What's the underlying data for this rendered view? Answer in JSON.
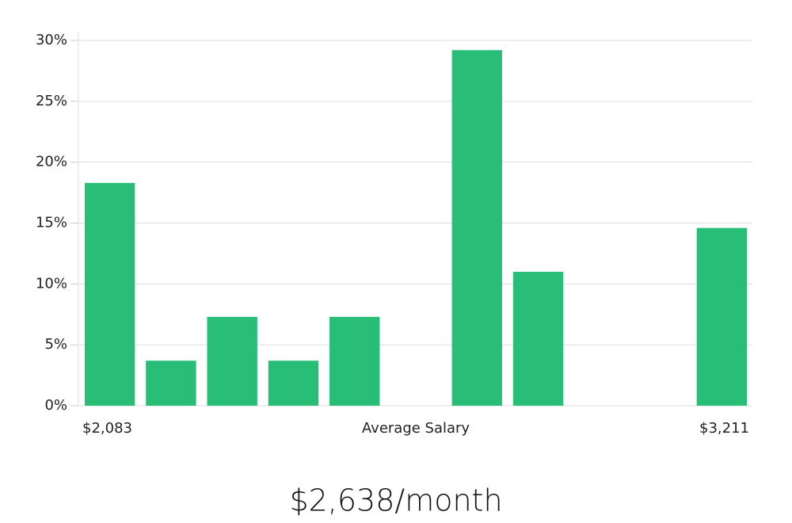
{
  "chart_data": {
    "type": "bar",
    "categories": [
      null,
      null,
      null,
      null,
      null,
      null,
      null,
      null,
      null,
      null,
      null
    ],
    "values": [
      18.3,
      3.7,
      7.3,
      3.7,
      7.3,
      0,
      29.2,
      11.0,
      0,
      0,
      14.6
    ],
    "color": "#28be78",
    "ylim": [
      0,
      30
    ],
    "yticks": [
      {
        "value": 0,
        "label": "0%"
      },
      {
        "value": 5,
        "label": "5%"
      },
      {
        "value": 10,
        "label": "10%"
      },
      {
        "value": 15,
        "label": "15%"
      },
      {
        "value": 20,
        "label": "20%"
      },
      {
        "value": 25,
        "label": "25%"
      },
      {
        "value": 30,
        "label": "30%"
      }
    ],
    "grid": true,
    "xlabel": "Average Salary",
    "x_min_label": "$2,083",
    "x_max_label": "$3,211",
    "footer": "$2,638/month"
  }
}
